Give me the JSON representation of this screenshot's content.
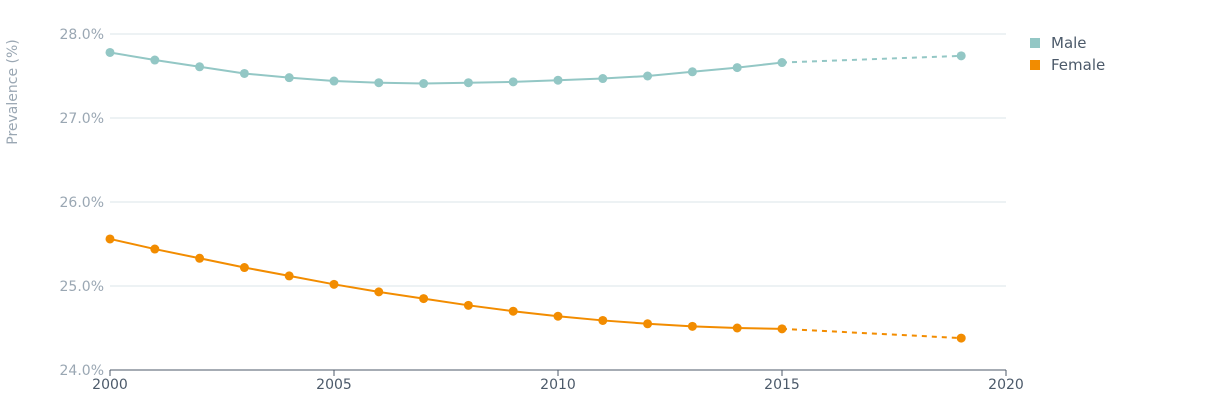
{
  "chart_data": {
    "type": "line",
    "ylabel": "Prevalence (%)",
    "xlabel": "",
    "xlim": [
      2000,
      2020
    ],
    "ylim": [
      24.0,
      28.0
    ],
    "x_ticks": [
      "2000",
      "2005",
      "2010",
      "2015",
      "2020"
    ],
    "y_ticks": [
      "24.0%",
      "25.0%",
      "26.0%",
      "27.0%",
      "28.0%"
    ],
    "grid": true,
    "legend_position": "top-right",
    "series": [
      {
        "name": "Male",
        "color": "#93c7c5",
        "points": [
          {
            "x": 2000,
            "y": 27.78
          },
          {
            "x": 2001,
            "y": 27.69
          },
          {
            "x": 2002,
            "y": 27.61
          },
          {
            "x": 2003,
            "y": 27.53
          },
          {
            "x": 2004,
            "y": 27.48
          },
          {
            "x": 2005,
            "y": 27.44
          },
          {
            "x": 2006,
            "y": 27.42
          },
          {
            "x": 2007,
            "y": 27.41
          },
          {
            "x": 2008,
            "y": 27.42
          },
          {
            "x": 2009,
            "y": 27.43
          },
          {
            "x": 2010,
            "y": 27.45
          },
          {
            "x": 2011,
            "y": 27.47
          },
          {
            "x": 2012,
            "y": 27.5
          },
          {
            "x": 2013,
            "y": 27.55
          },
          {
            "x": 2014,
            "y": 27.6
          },
          {
            "x": 2015,
            "y": 27.66
          },
          {
            "x": 2019,
            "y": 27.74
          }
        ],
        "projected_from": 2015
      },
      {
        "name": "Female",
        "color": "#f28c00",
        "points": [
          {
            "x": 2000,
            "y": 25.56
          },
          {
            "x": 2001,
            "y": 25.44
          },
          {
            "x": 2002,
            "y": 25.33
          },
          {
            "x": 2003,
            "y": 25.22
          },
          {
            "x": 2004,
            "y": 25.12
          },
          {
            "x": 2005,
            "y": 25.02
          },
          {
            "x": 2006,
            "y": 24.93
          },
          {
            "x": 2007,
            "y": 24.85
          },
          {
            "x": 2008,
            "y": 24.77
          },
          {
            "x": 2009,
            "y": 24.7
          },
          {
            "x": 2010,
            "y": 24.64
          },
          {
            "x": 2011,
            "y": 24.59
          },
          {
            "x": 2012,
            "y": 24.55
          },
          {
            "x": 2013,
            "y": 24.52
          },
          {
            "x": 2014,
            "y": 24.5
          },
          {
            "x": 2015,
            "y": 24.49
          },
          {
            "x": 2019,
            "y": 24.38
          }
        ],
        "projected_from": 2015
      }
    ]
  }
}
